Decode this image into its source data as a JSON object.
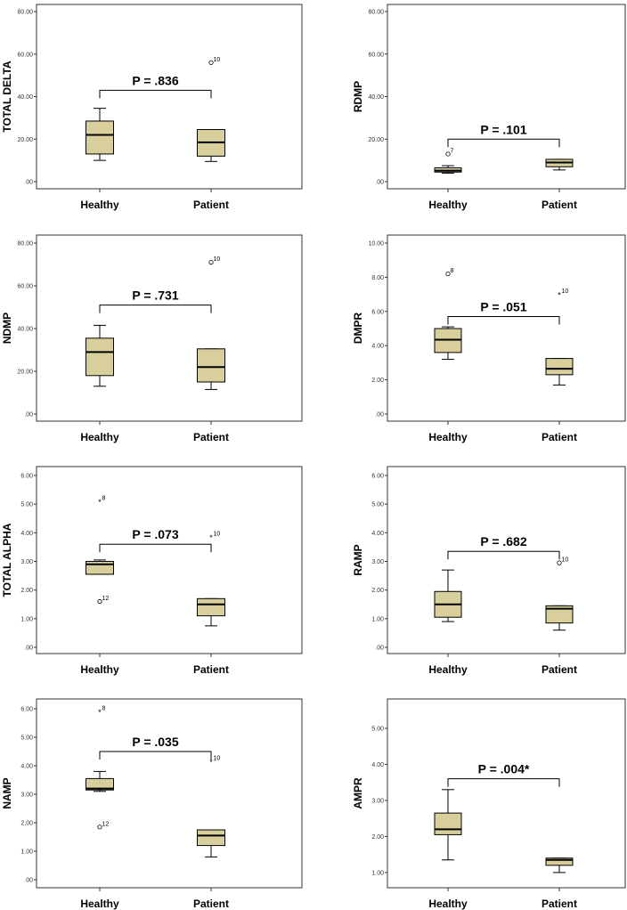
{
  "style": {
    "box_fill": "#d8cf9c",
    "stroke": "#000000",
    "frame": "#333333"
  },
  "chart_data": [
    {
      "type": "boxplot",
      "ylabel": "TOTAL DELTA",
      "ylim": [
        0,
        80
      ],
      "yticks": [
        0,
        20,
        40,
        60,
        80
      ],
      "ytick_labels": [
        ".00",
        "20.00",
        "40.00",
        "60.00",
        "80.00"
      ],
      "categories": [
        "Healthy",
        "Patient"
      ],
      "boxes": [
        {
          "whisker_low": 10,
          "q1": 13,
          "median": 22,
          "q3": 28.5,
          "whisker_high": 34.5,
          "outliers": []
        },
        {
          "whisker_low": 9.5,
          "q1": 12,
          "median": 18.5,
          "q3": 24.5,
          "whisker_high": 24.5,
          "outliers": [
            {
              "value": 56,
              "label": "10",
              "marker": "circle"
            }
          ]
        }
      ],
      "annotation": "P = .836",
      "bracket_y": 43
    },
    {
      "type": "boxplot",
      "ylabel": "RDMP",
      "ylim": [
        0,
        80
      ],
      "yticks": [
        0,
        20,
        40,
        60,
        80
      ],
      "ytick_labels": [
        ".00",
        "20.00",
        "40.00",
        "60.00",
        "80.00"
      ],
      "categories": [
        "Healthy",
        "Patient"
      ],
      "boxes": [
        {
          "whisker_low": 4,
          "q1": 4.5,
          "median": 5.2,
          "q3": 6.5,
          "whisker_high": 7.5,
          "outliers": [
            {
              "value": 13,
              "label": "7",
              "marker": "circle"
            }
          ]
        },
        {
          "whisker_low": 5.5,
          "q1": 7,
          "median": 9,
          "q3": 10.5,
          "whisker_high": 10.5,
          "outliers": []
        }
      ],
      "annotation": "P = .101",
      "bracket_y": 20
    },
    {
      "type": "boxplot",
      "ylabel": "NDMP",
      "ylim": [
        0,
        80
      ],
      "yticks": [
        0,
        20,
        40,
        60,
        80
      ],
      "ytick_labels": [
        ".00",
        "20.00",
        "40.00",
        "60.00",
        "80.00"
      ],
      "categories": [
        "Healthy",
        "Patient"
      ],
      "boxes": [
        {
          "whisker_low": 13,
          "q1": 18,
          "median": 29,
          "q3": 35.5,
          "whisker_high": 41.5,
          "outliers": []
        },
        {
          "whisker_low": 11.5,
          "q1": 15,
          "median": 22,
          "q3": 30.5,
          "whisker_high": 30.5,
          "outliers": [
            {
              "value": 71,
              "label": "10",
              "marker": "circle"
            }
          ]
        }
      ],
      "annotation": "P = .731",
      "bracket_y": 51
    },
    {
      "type": "boxplot",
      "ylabel": "DMPR",
      "ylim": [
        0,
        10
      ],
      "yticks": [
        0,
        2,
        4,
        6,
        8,
        10
      ],
      "ytick_labels": [
        ".00",
        "2.00",
        "4.00",
        "6.00",
        "8.00",
        "10.00"
      ],
      "categories": [
        "Healthy",
        "Patient"
      ],
      "boxes": [
        {
          "whisker_low": 3.2,
          "q1": 3.6,
          "median": 4.35,
          "q3": 5.0,
          "whisker_high": 5.1,
          "outliers": [
            {
              "value": 8.2,
              "label": "8",
              "marker": "circle"
            }
          ]
        },
        {
          "whisker_low": 1.7,
          "q1": 2.3,
          "median": 2.65,
          "q3": 3.25,
          "whisker_high": 3.25,
          "outliers": [
            {
              "value": 7.0,
              "label": "10",
              "marker": "star"
            }
          ]
        }
      ],
      "annotation": "P = .051",
      "bracket_y": 5.7
    },
    {
      "type": "boxplot",
      "ylabel": "TOTAL ALPHA",
      "ylim": [
        0,
        6
      ],
      "yticks": [
        0,
        1,
        2,
        3,
        4,
        5,
        6
      ],
      "ytick_labels": [
        ".00",
        "1.00",
        "2.00",
        "3.00",
        "4.00",
        "5.00",
        "6.00"
      ],
      "categories": [
        "Healthy",
        "Patient"
      ],
      "boxes": [
        {
          "whisker_low": 2.55,
          "q1": 2.55,
          "median": 2.9,
          "q3": 3.0,
          "whisker_high": 3.05,
          "outliers": [
            {
              "value": 1.6,
              "label": "12",
              "marker": "circle"
            },
            {
              "value": 5.1,
              "label": "8",
              "marker": "star"
            }
          ]
        },
        {
          "whisker_low": 0.75,
          "q1": 1.1,
          "median": 1.5,
          "q3": 1.7,
          "whisker_high": 1.7,
          "outliers": [
            {
              "value": 3.85,
              "label": "10",
              "marker": "star"
            }
          ]
        }
      ],
      "annotation": "P = .073",
      "bracket_y": 3.6
    },
    {
      "type": "boxplot",
      "ylabel": "RAMP",
      "ylim": [
        0,
        6
      ],
      "yticks": [
        0,
        1,
        2,
        3,
        4,
        5,
        6
      ],
      "ytick_labels": [
        ".00",
        "1.00",
        "2.00",
        "3.00",
        "4.00",
        "5.00",
        "6.00"
      ],
      "categories": [
        "Healthy",
        "Patient"
      ],
      "boxes": [
        {
          "whisker_low": 0.9,
          "q1": 1.05,
          "median": 1.5,
          "q3": 1.95,
          "whisker_high": 2.7,
          "outliers": []
        },
        {
          "whisker_low": 0.6,
          "q1": 0.85,
          "median": 1.35,
          "q3": 1.45,
          "whisker_high": 1.45,
          "outliers": [
            {
              "value": 2.95,
              "label": "10",
              "marker": "circle"
            }
          ]
        }
      ],
      "annotation": "P = .682",
      "bracket_y": 3.35
    },
    {
      "type": "boxplot",
      "ylabel": "NAMP",
      "ylim": [
        0,
        6
      ],
      "yticks": [
        0,
        1,
        2,
        3,
        4,
        5,
        6
      ],
      "ytick_labels": [
        ".00",
        "1.00",
        "2.00",
        "3.00",
        "4.00",
        "5.00",
        "6.00"
      ],
      "categories": [
        "Healthy",
        "Patient"
      ],
      "boxes": [
        {
          "whisker_low": 3.1,
          "q1": 3.15,
          "median": 3.2,
          "q3": 3.55,
          "whisker_high": 3.8,
          "outliers": [
            {
              "value": 1.85,
              "label": "12",
              "marker": "circle"
            },
            {
              "value": 5.9,
              "label": "8",
              "marker": "star"
            }
          ]
        },
        {
          "whisker_low": 0.8,
          "q1": 1.2,
          "median": 1.55,
          "q3": 1.75,
          "whisker_high": 1.75,
          "outliers": [
            {
              "value": 4.15,
              "label": "10",
              "marker": "star"
            }
          ]
        }
      ],
      "annotation": "P = .035",
      "bracket_y": 4.5
    },
    {
      "type": "boxplot",
      "ylabel": "AMPR",
      "ylim": [
        0.8,
        5
      ],
      "yticks": [
        1,
        2,
        3,
        4,
        5
      ],
      "ytick_labels": [
        "1.00",
        "2.00",
        "3.00",
        "4.00",
        "5.00"
      ],
      "categories": [
        "Healthy",
        "Patient"
      ],
      "boxes": [
        {
          "whisker_low": 1.35,
          "q1": 2.05,
          "median": 2.2,
          "q3": 2.65,
          "whisker_high": 3.3,
          "outliers": []
        },
        {
          "whisker_low": 1.0,
          "q1": 1.2,
          "median": 1.35,
          "q3": 1.4,
          "whisker_high": 1.4,
          "outliers": []
        }
      ],
      "annotation": "P = .004*",
      "bracket_y": 3.6
    }
  ]
}
